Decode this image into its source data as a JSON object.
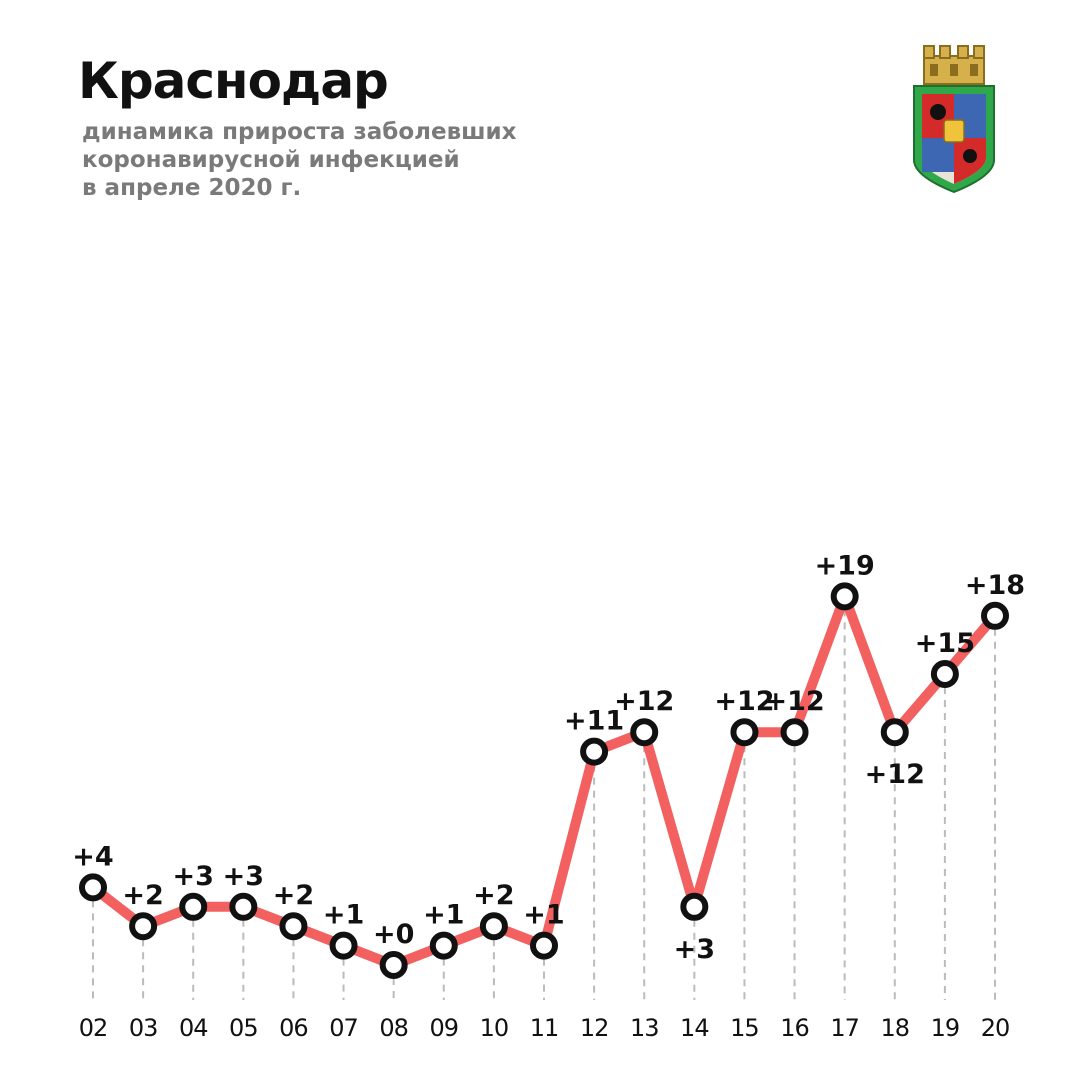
{
  "header": {
    "title": "Краснодар",
    "subtitle_lines": [
      "динамика прироста заболевших",
      "коронавирусной инфекцией",
      "в апреле 2020 г."
    ]
  },
  "colors": {
    "line": "#f26060",
    "marker_fill": "#ffffff",
    "marker_stroke": "#111111",
    "grid": "#bbbbbb",
    "text": "#111111",
    "subtitle": "#7a7a7a"
  },
  "chart_data": {
    "type": "line",
    "title": "Краснодар",
    "subtitle": "динамика прироста заболевших коронавирусной инфекцией в апреле 2020 г.",
    "categories": [
      "02",
      "03",
      "04",
      "05",
      "06",
      "07",
      "08",
      "09",
      "10",
      "11",
      "12",
      "13",
      "14",
      "15",
      "16",
      "17",
      "18",
      "19",
      "20"
    ],
    "values": [
      4,
      2,
      3,
      3,
      2,
      1,
      0,
      1,
      2,
      1,
      11,
      12,
      3,
      12,
      12,
      19,
      12,
      15,
      18
    ],
    "labels": [
      "+4",
      "+2",
      "+3",
      "+3",
      "+2",
      "+1",
      "+0",
      "+1",
      "+2",
      "+1",
      "+11",
      "+12",
      "+3",
      "+12",
      "+12",
      "+19",
      "+12",
      "+15",
      "+18"
    ],
    "label_position": [
      "above",
      "above",
      "above",
      "above",
      "above",
      "above",
      "above",
      "above",
      "above",
      "above",
      "above",
      "above",
      "below",
      "above",
      "above",
      "above",
      "below",
      "above",
      "above"
    ],
    "vertical_guides": true,
    "legend": "none"
  }
}
